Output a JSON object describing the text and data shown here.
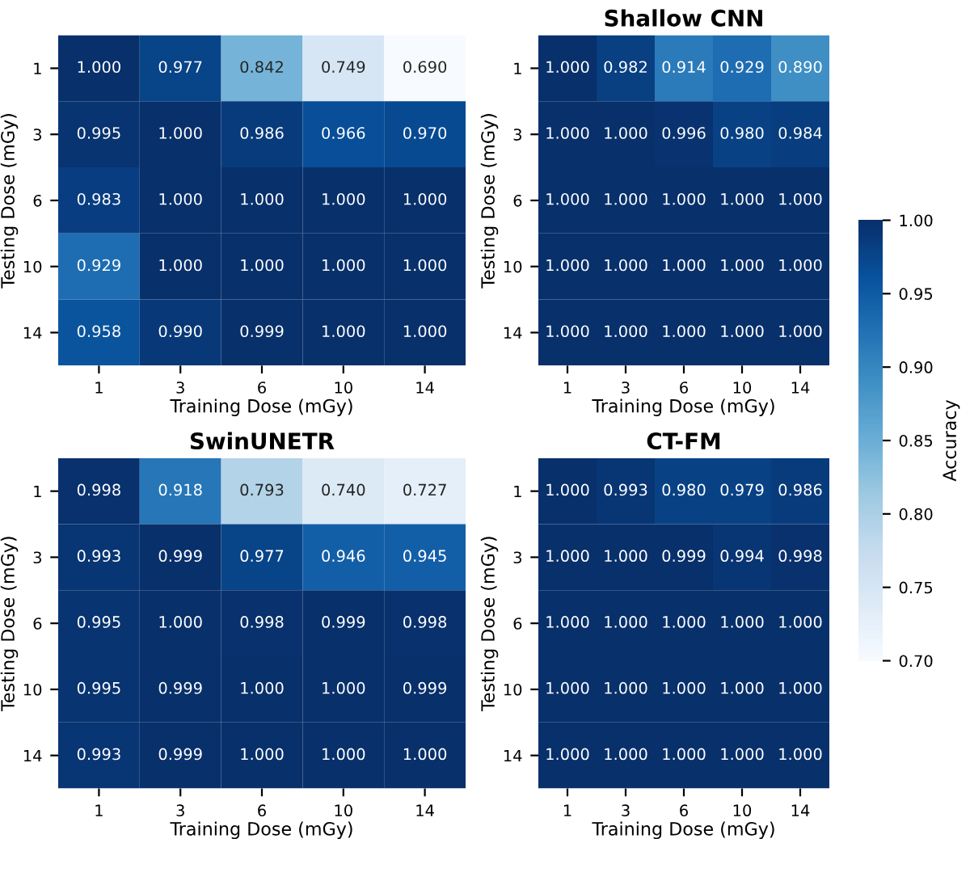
{
  "chart_data": [
    {
      "type": "heatmap",
      "title": null,
      "xlabel": "Training Dose (mGy)",
      "ylabel": "Testing Dose (mGy)",
      "categories": [
        "1",
        "3",
        "6",
        "10",
        "14"
      ],
      "y_categories": [
        "1",
        "3",
        "6",
        "10",
        "14"
      ],
      "cells": [
        [
          1.0,
          0.977,
          0.842,
          0.749,
          0.69
        ],
        [
          0.995,
          1.0,
          0.986,
          0.966,
          0.97
        ],
        [
          0.983,
          1.0,
          1.0,
          1.0,
          1.0
        ],
        [
          0.929,
          1.0,
          1.0,
          1.0,
          1.0
        ],
        [
          0.958,
          0.99,
          0.999,
          1.0,
          1.0
        ]
      ],
      "cell_labels": [
        [
          "1.000",
          "0.977",
          "0.842",
          "0.749",
          "0.690"
        ],
        [
          "0.995",
          "1.000",
          "0.986",
          "0.966",
          "0.970"
        ],
        [
          "0.983",
          "1.000",
          "1.000",
          "1.000",
          "1.000"
        ],
        [
          "0.929",
          "1.000",
          "1.000",
          "1.000",
          "1.000"
        ],
        [
          "0.958",
          "0.990",
          "0.999",
          "1.000",
          "1.000"
        ]
      ]
    },
    {
      "type": "heatmap",
      "title": "Shallow CNN",
      "xlabel": "Training Dose (mGy)",
      "ylabel": "Testing Dose (mGy)",
      "categories": [
        "1",
        "3",
        "6",
        "10",
        "14"
      ],
      "y_categories": [
        "1",
        "3",
        "6",
        "10",
        "14"
      ],
      "cells": [
        [
          1.0,
          0.982,
          0.914,
          0.929,
          0.89
        ],
        [
          1.0,
          1.0,
          0.996,
          0.98,
          0.984
        ],
        [
          1.0,
          1.0,
          1.0,
          1.0,
          1.0
        ],
        [
          1.0,
          1.0,
          1.0,
          1.0,
          1.0
        ],
        [
          1.0,
          1.0,
          1.0,
          1.0,
          1.0
        ]
      ],
      "cell_labels": [
        [
          "1.000",
          "0.982",
          "0.914",
          "0.929",
          "0.890"
        ],
        [
          "1.000",
          "1.000",
          "0.996",
          "0.980",
          "0.984"
        ],
        [
          "1.000",
          "1.000",
          "1.000",
          "1.000",
          "1.000"
        ],
        [
          "1.000",
          "1.000",
          "1.000",
          "1.000",
          "1.000"
        ],
        [
          "1.000",
          "1.000",
          "1.000",
          "1.000",
          "1.000"
        ]
      ],
      "clim": [
        0.7,
        1.0
      ],
      "clabel": "Accuracy",
      "cticks": [
        {
          "value": 0.7,
          "label": "0.70"
        },
        {
          "value": 0.75,
          "label": "0.75"
        },
        {
          "value": 0.8,
          "label": "0.80"
        },
        {
          "value": 0.85,
          "label": "0.85"
        },
        {
          "value": 0.9,
          "label": "0.90"
        },
        {
          "value": 0.95,
          "label": "0.95"
        },
        {
          "value": 1.0,
          "label": "1.00"
        }
      ]
    },
    {
      "type": "heatmap",
      "title": "SwinUNETR",
      "xlabel": "Training Dose (mGy)",
      "ylabel": "Testing Dose (mGy)",
      "categories": [
        "1",
        "3",
        "6",
        "10",
        "14"
      ],
      "y_categories": [
        "1",
        "3",
        "6",
        "10",
        "14"
      ],
      "cells": [
        [
          0.998,
          0.918,
          0.793,
          0.74,
          0.727
        ],
        [
          0.993,
          0.999,
          0.977,
          0.946,
          0.945
        ],
        [
          0.995,
          1.0,
          0.998,
          0.999,
          0.998
        ],
        [
          0.995,
          0.999,
          1.0,
          1.0,
          0.999
        ],
        [
          0.993,
          0.999,
          1.0,
          1.0,
          1.0
        ]
      ],
      "cell_labels": [
        [
          "0.998",
          "0.918",
          "0.793",
          "0.740",
          "0.727"
        ],
        [
          "0.993",
          "0.999",
          "0.977",
          "0.946",
          "0.945"
        ],
        [
          "0.995",
          "1.000",
          "0.998",
          "0.999",
          "0.998"
        ],
        [
          "0.995",
          "0.999",
          "1.000",
          "1.000",
          "0.999"
        ],
        [
          "0.993",
          "0.999",
          "1.000",
          "1.000",
          "1.000"
        ]
      ]
    },
    {
      "type": "heatmap",
      "title": "CT-FM",
      "xlabel": "Training Dose (mGy)",
      "ylabel": "Testing Dose (mGy)",
      "categories": [
        "1",
        "3",
        "6",
        "10",
        "14"
      ],
      "y_categories": [
        "1",
        "3",
        "6",
        "10",
        "14"
      ],
      "cells": [
        [
          1.0,
          0.993,
          0.98,
          0.979,
          0.986
        ],
        [
          1.0,
          1.0,
          0.999,
          0.994,
          0.998
        ],
        [
          1.0,
          1.0,
          1.0,
          1.0,
          1.0
        ],
        [
          1.0,
          1.0,
          1.0,
          1.0,
          1.0
        ],
        [
          1.0,
          1.0,
          1.0,
          1.0,
          1.0
        ]
      ],
      "cell_labels": [
        [
          "1.000",
          "0.993",
          "0.980",
          "0.979",
          "0.986"
        ],
        [
          "1.000",
          "1.000",
          "0.999",
          "0.994",
          "0.998"
        ],
        [
          "1.000",
          "1.000",
          "1.000",
          "1.000",
          "1.000"
        ],
        [
          "1.000",
          "1.000",
          "1.000",
          "1.000",
          "1.000"
        ],
        [
          "1.000",
          "1.000",
          "1.000",
          "1.000",
          "1.000"
        ]
      ]
    }
  ]
}
